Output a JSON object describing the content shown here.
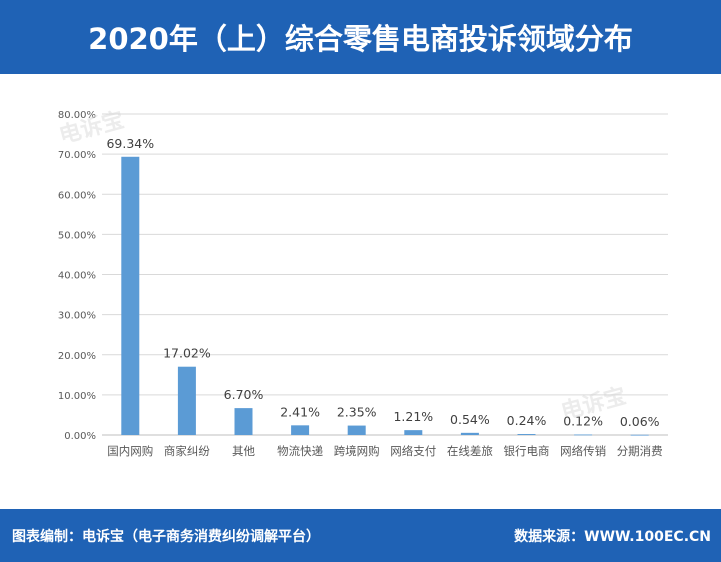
{
  "header": {
    "title": "2020年（上）综合零售电商投诉领域分布"
  },
  "footer": {
    "left": "图表编制：电诉宝（电子商务消费纠纷调解平台）",
    "right": "数据来源：WWW.100EC.CN"
  },
  "watermark": {
    "text": "电诉宝"
  },
  "colors": {
    "brand": "#1f62b5",
    "bar": "#5b9bd5",
    "axis_text": "#595959",
    "grid": "#d9d9d9"
  },
  "chart_data": {
    "type": "bar",
    "categories": [
      "国内网购",
      "商家纠纷",
      "其他",
      "物流快递",
      "跨境网购",
      "网络支付",
      "在线差旅",
      "银行电商",
      "网络传销",
      "分期消费"
    ],
    "values": [
      69.34,
      17.02,
      6.7,
      2.41,
      2.35,
      1.21,
      0.54,
      0.24,
      0.12,
      0.06
    ],
    "data_labels": [
      "69.34%",
      "17.02%",
      "6.70%",
      "2.41%",
      "2.35%",
      "1.21%",
      "0.54%",
      "0.24%",
      "0.12%",
      "0.06%"
    ],
    "ylim": [
      0,
      80
    ],
    "yticks": [
      "0.00%",
      "10.00%",
      "20.00%",
      "30.00%",
      "40.00%",
      "50.00%",
      "60.00%",
      "70.00%",
      "80.00%"
    ],
    "grid": true,
    "legend": "none"
  }
}
